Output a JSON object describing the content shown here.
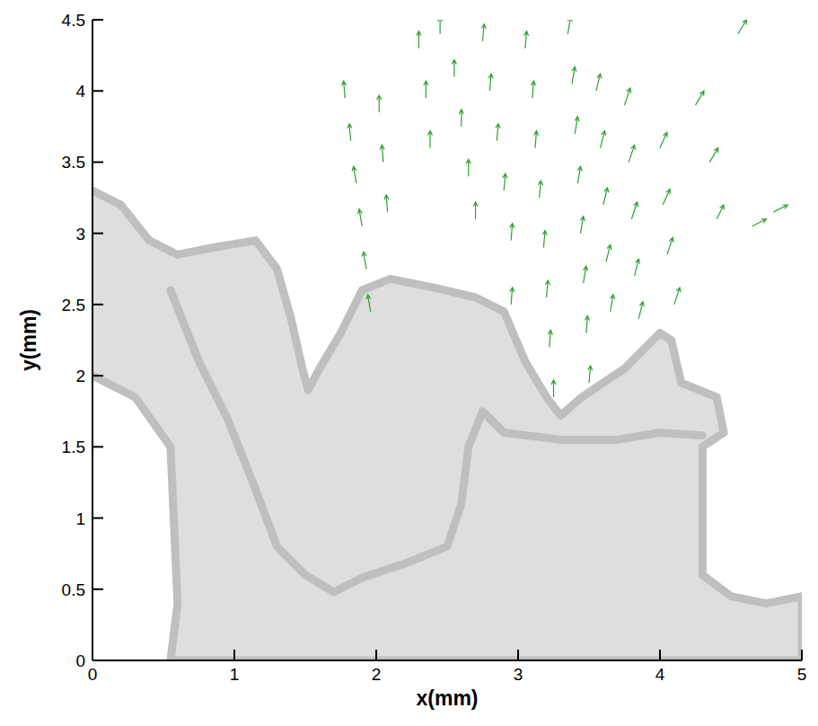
{
  "chart_data": {
    "type": "quiver",
    "x_label": "x(mm)",
    "y_label": "y(mm)",
    "xlim": [
      0,
      5
    ],
    "ylim": [
      0,
      4.5
    ],
    "xticks": [
      0,
      1,
      2,
      3,
      4,
      5
    ],
    "yticks": [
      0,
      0.5,
      1,
      1.5,
      2,
      2.5,
      3,
      3.5,
      4,
      4.5
    ],
    "color": "#2ca02c",
    "series": [
      {
        "x": [
          1.78,
          1.82,
          1.86,
          1.9,
          1.93,
          1.96,
          2.02,
          2.05,
          2.08,
          2.3,
          2.35,
          2.38,
          2.45,
          2.55,
          2.6,
          2.65,
          2.7,
          2.75,
          2.8,
          2.85,
          2.9,
          2.95,
          2.95,
          3.05,
          3.1,
          3.12,
          3.15,
          3.18,
          3.2,
          3.22,
          3.25,
          3.35,
          3.38,
          3.4,
          3.42,
          3.44,
          3.46,
          3.48,
          3.5,
          3.55,
          3.58,
          3.6,
          3.62,
          3.65,
          3.75,
          3.78,
          3.8,
          3.82,
          3.85,
          4.0,
          4.02,
          4.05,
          4.1,
          4.25,
          4.35,
          4.4,
          4.55,
          4.65,
          4.8
        ],
        "y": [
          3.95,
          3.65,
          3.35,
          3.05,
          2.75,
          2.45,
          3.85,
          3.5,
          3.15,
          4.3,
          3.95,
          3.6,
          4.4,
          4.1,
          3.75,
          3.4,
          3.1,
          4.35,
          4.0,
          3.65,
          3.3,
          2.95,
          2.5,
          4.3,
          3.95,
          3.6,
          3.25,
          2.9,
          2.55,
          2.2,
          1.85,
          4.4,
          4.05,
          3.7,
          3.35,
          3.0,
          2.65,
          2.3,
          1.95,
          4.0,
          3.6,
          3.2,
          2.8,
          2.45,
          3.9,
          3.5,
          3.1,
          2.7,
          2.4,
          3.6,
          3.2,
          2.85,
          2.5,
          3.9,
          3.5,
          3.1,
          4.4,
          3.05,
          3.15
        ],
        "u": [
          -0.01,
          -0.01,
          -0.02,
          -0.02,
          -0.02,
          -0.02,
          0,
          -0.01,
          -0.01,
          0,
          0,
          0,
          0,
          0,
          0,
          0,
          0,
          0.01,
          0.01,
          0.01,
          0.01,
          0.01,
          0.01,
          0.01,
          0.01,
          0.01,
          0.01,
          0.01,
          0.01,
          0.01,
          0,
          0.02,
          0.02,
          0.02,
          0.02,
          0.02,
          0.02,
          0.01,
          0.01,
          0.03,
          0.03,
          0.03,
          0.03,
          0.02,
          0.04,
          0.04,
          0.04,
          0.03,
          0.03,
          0.05,
          0.05,
          0.04,
          0.04,
          0.06,
          0.06,
          0.05,
          0.06,
          0.1,
          0.1
        ],
        "v": [
          0.12,
          0.12,
          0.12,
          0.12,
          0.12,
          0.12,
          0.12,
          0.12,
          0.12,
          0.12,
          0.12,
          0.12,
          0.12,
          0.12,
          0.12,
          0.12,
          0.12,
          0.12,
          0.12,
          0.12,
          0.12,
          0.12,
          0.12,
          0.12,
          0.12,
          0.12,
          0.12,
          0.12,
          0.12,
          0.12,
          0.12,
          0.12,
          0.12,
          0.12,
          0.12,
          0.12,
          0.12,
          0.12,
          0.12,
          0.12,
          0.12,
          0.12,
          0.12,
          0.12,
          0.12,
          0.12,
          0.12,
          0.12,
          0.12,
          0.11,
          0.11,
          0.12,
          0.12,
          0.1,
          0.1,
          0.1,
          0.1,
          0.05,
          0.05
        ]
      }
    ],
    "outlines": [
      {
        "x": [
          0,
          0.2,
          0.4,
          0.6,
          0.85,
          1.15,
          1.3,
          1.4,
          1.48,
          1.52,
          1.6,
          1.75,
          1.9,
          2.1,
          2.4,
          2.7,
          2.9,
          3.05,
          3.2,
          3.3,
          3.45,
          3.6,
          3.75,
          3.9,
          4.0,
          4.08,
          4.15,
          4.4,
          4.45,
          4.3,
          4.3,
          4.5,
          4.75,
          5,
          5,
          0.55,
          0.6,
          0.55,
          0.3,
          0
        ],
        "y": [
          3.3,
          3.2,
          2.95,
          2.85,
          2.9,
          2.95,
          2.75,
          2.4,
          2.05,
          1.9,
          2.05,
          2.3,
          2.6,
          2.68,
          2.62,
          2.55,
          2.45,
          2.1,
          1.85,
          1.72,
          1.85,
          1.95,
          2.05,
          2.2,
          2.3,
          2.25,
          1.95,
          1.85,
          1.6,
          1.5,
          0.6,
          0.45,
          0.4,
          0.45,
          0,
          0,
          0.4,
          1.5,
          1.85,
          2.0
        ]
      },
      {
        "x": [
          0.55,
          0.75,
          0.95,
          1.15,
          1.3,
          1.5,
          1.7,
          1.9,
          2.2,
          2.5,
          2.6,
          2.65,
          2.75,
          2.9,
          3.3,
          3.7,
          4.0,
          4.3
        ],
        "y": [
          2.6,
          2.1,
          1.7,
          1.2,
          0.8,
          0.6,
          0.48,
          0.58,
          0.68,
          0.8,
          1.1,
          1.5,
          1.75,
          1.6,
          1.55,
          1.55,
          1.6,
          1.58
        ]
      }
    ]
  }
}
